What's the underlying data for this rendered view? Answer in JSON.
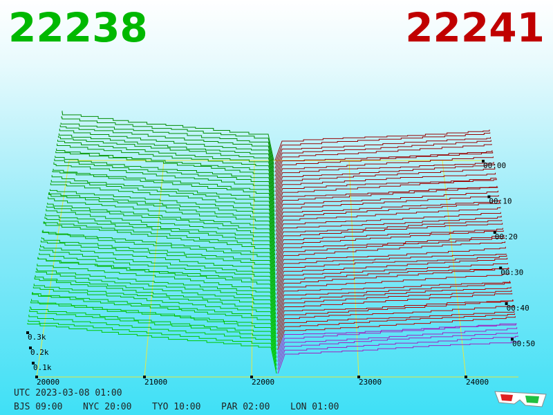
{
  "header": {
    "bid": "22238",
    "ask": "22241"
  },
  "price_axis": [
    "20000",
    "21000",
    "22000",
    "23000",
    "24000"
  ],
  "time_axis": [
    "00:00",
    "00:10",
    "00:20",
    "00:30",
    "00:40",
    "00:50"
  ],
  "volume_axis": [
    "0.3k",
    "0.2k",
    "0.1k"
  ],
  "footer": {
    "utc": "UTC 2023-03-08 01:00",
    "zones": [
      "BJS 09:00",
      "NYC 20:00",
      "TYO 10:00",
      "PAR 02:00",
      "LON 01:00"
    ]
  }
}
